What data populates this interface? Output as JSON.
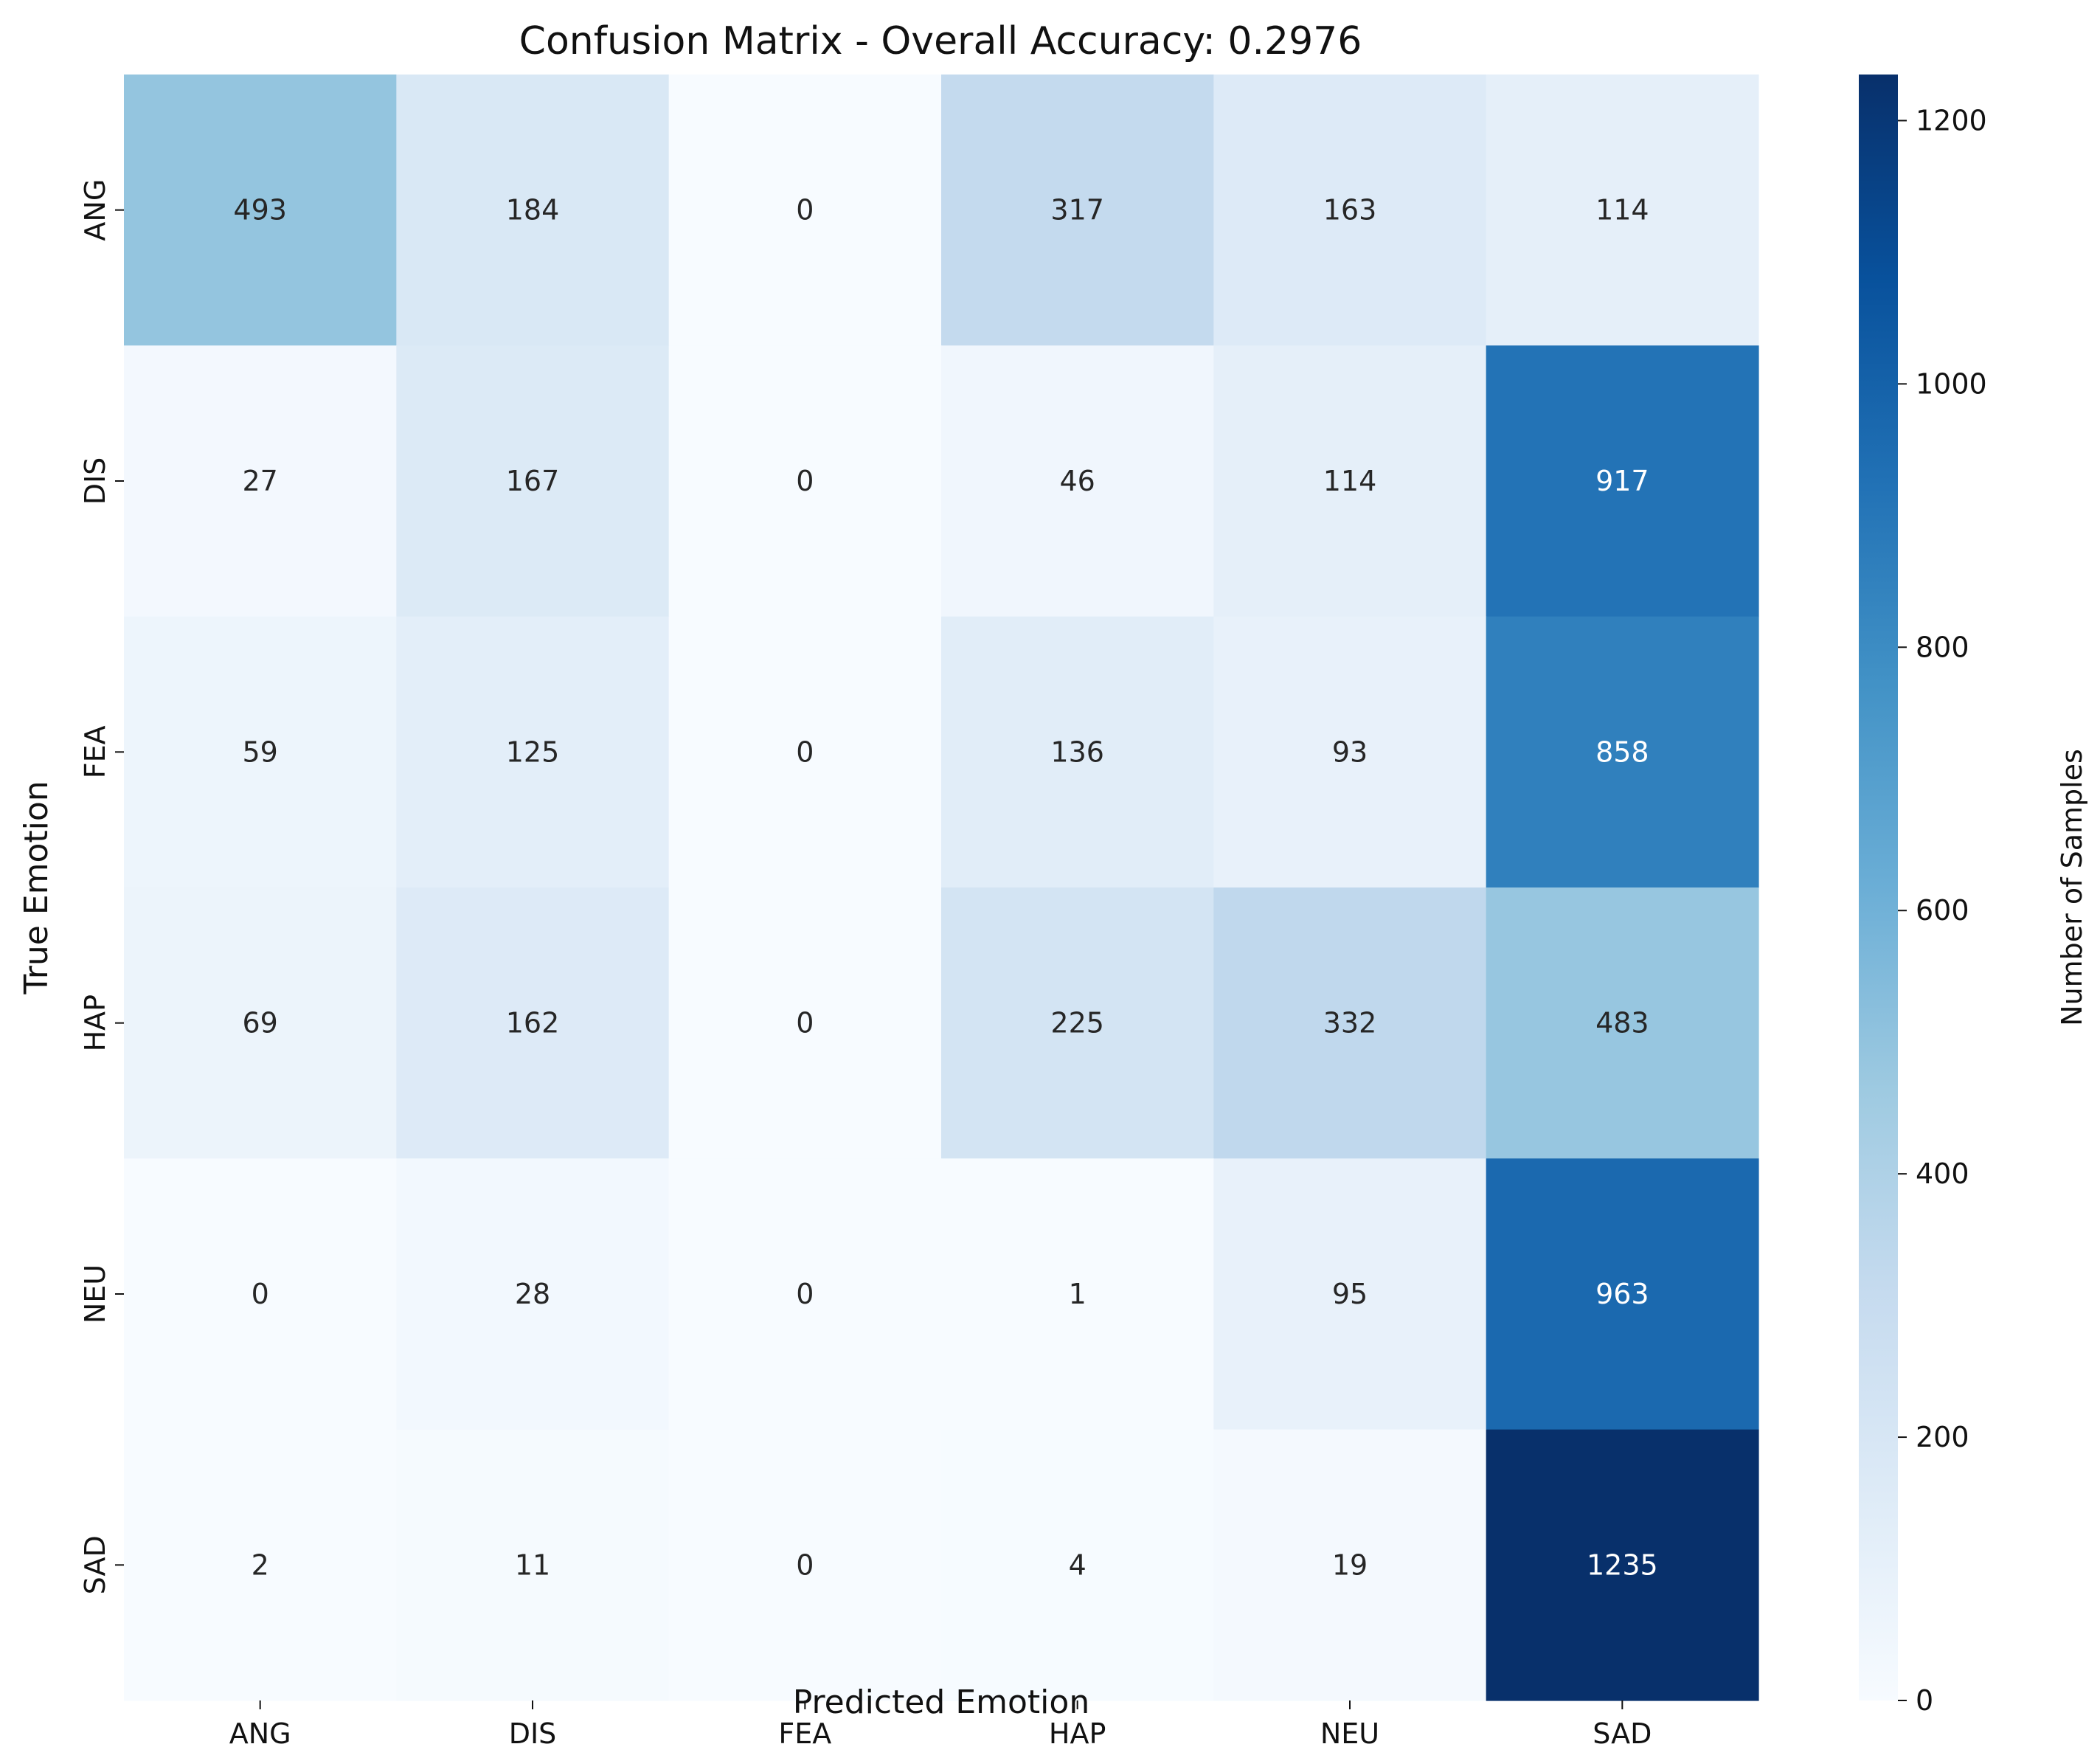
{
  "chart_data": {
    "type": "heatmap",
    "title": "Confusion Matrix - Overall Accuracy: 0.2976",
    "xlabel": "Predicted Emotion",
    "ylabel": "True Emotion",
    "x_categories": [
      "ANG",
      "DIS",
      "FEA",
      "HAP",
      "NEU",
      "SAD"
    ],
    "y_categories": [
      "ANG",
      "DIS",
      "FEA",
      "HAP",
      "NEU",
      "SAD"
    ],
    "values": [
      [
        493,
        184,
        0,
        317,
        163,
        114
      ],
      [
        27,
        167,
        0,
        46,
        114,
        917
      ],
      [
        59,
        125,
        0,
        136,
        93,
        858
      ],
      [
        69,
        162,
        0,
        225,
        332,
        483
      ],
      [
        0,
        28,
        0,
        1,
        95,
        963
      ],
      [
        2,
        11,
        0,
        4,
        19,
        1235
      ]
    ],
    "colorbar": {
      "label": "Number of Samples",
      "range": [
        0,
        1235
      ],
      "ticks": [
        0,
        200,
        400,
        600,
        800,
        1000,
        1200
      ]
    },
    "colormap": "Blues",
    "colormap_stops": [
      "#f7fbff",
      "#deebf7",
      "#c6dbef",
      "#9ecae1",
      "#6baed6",
      "#4292c6",
      "#2171b5",
      "#08519c",
      "#08306b"
    ]
  }
}
